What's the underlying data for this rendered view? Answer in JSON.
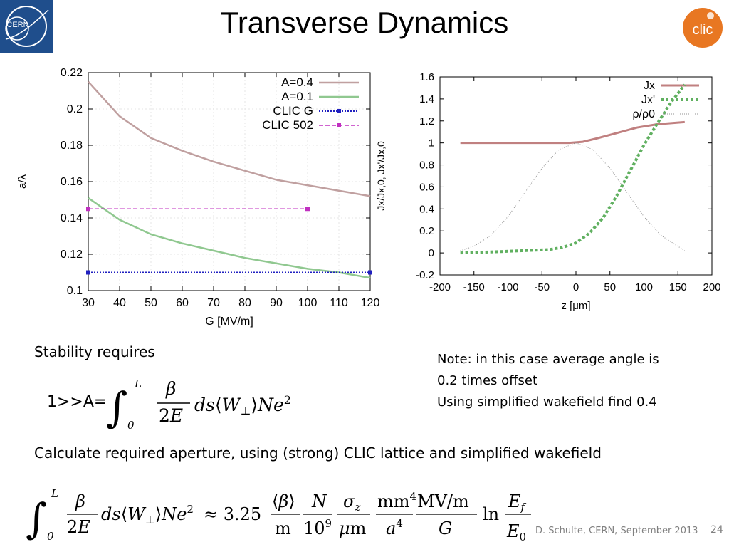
{
  "title": "Transverse Dynamics",
  "logos": {
    "cern": "CERN",
    "clic": "clic"
  },
  "chart_data": [
    {
      "type": "line",
      "xlabel": "G [MV/m]",
      "ylabel": "a/λ",
      "xlim": [
        30,
        120
      ],
      "ylim": [
        0.1,
        0.22
      ],
      "xticks": [
        30,
        40,
        50,
        60,
        70,
        80,
        90,
        100,
        110,
        120
      ],
      "yticks": [
        0.1,
        0.12,
        0.14,
        0.16,
        0.18,
        0.2,
        0.22
      ],
      "grid": true,
      "legend_position": "top-right",
      "series": [
        {
          "name": "A=0.4",
          "color": "#c0a0a0",
          "x": [
            30,
            40,
            50,
            60,
            70,
            80,
            90,
            100,
            110,
            120
          ],
          "y": [
            0.215,
            0.196,
            0.184,
            0.177,
            0.171,
            0.166,
            0.161,
            0.158,
            0.155,
            0.152
          ]
        },
        {
          "name": "A=0.1",
          "color": "#90c890",
          "x": [
            30,
            40,
            50,
            60,
            70,
            80,
            90,
            100,
            110,
            120
          ],
          "y": [
            0.151,
            0.139,
            0.131,
            0.126,
            0.122,
            0.118,
            0.115,
            0.112,
            0.11,
            0.107
          ]
        },
        {
          "name": "CLIC G",
          "color": "#2020c0",
          "x": [
            30,
            120
          ],
          "y": [
            0.11,
            0.11
          ]
        },
        {
          "name": "CLIC 502",
          "color": "#c030c0",
          "x": [
            30,
            100
          ],
          "y": [
            0.145,
            0.145
          ]
        }
      ]
    },
    {
      "type": "line",
      "xlabel": "z [μm]",
      "ylabel": "Jx/Jx,0, Jx'/Jx,0",
      "xlim": [
        -200,
        200
      ],
      "ylim": [
        -0.2,
        1.6
      ],
      "xticks": [
        -200,
        -150,
        -100,
        -50,
        0,
        50,
        100,
        150,
        200
      ],
      "yticks": [
        -0.2,
        0,
        0.2,
        0.4,
        0.6,
        0.8,
        1,
        1.2,
        1.4,
        1.6
      ],
      "grid": false,
      "legend_position": "top-right",
      "series": [
        {
          "name": "Jx",
          "color": "#c08080",
          "x": [
            -170,
            -120,
            -80,
            -40,
            -10,
            10,
            30,
            60,
            90,
            120,
            160
          ],
          "y": [
            1.0,
            1.0,
            1.0,
            1.0,
            1.0,
            1.01,
            1.04,
            1.09,
            1.14,
            1.17,
            1.19
          ]
        },
        {
          "name": "Jx'",
          "color": "#60b060",
          "x": [
            -170,
            -120,
            -80,
            -40,
            -20,
            0,
            20,
            40,
            60,
            80,
            100,
            120,
            140,
            160
          ],
          "y": [
            0.0,
            0.01,
            0.02,
            0.03,
            0.05,
            0.09,
            0.18,
            0.32,
            0.52,
            0.75,
            0.98,
            1.18,
            1.37,
            1.53
          ]
        },
        {
          "name": "ρ/ρ0",
          "color": "#909090",
          "x": [
            -170,
            -150,
            -125,
            -100,
            -75,
            -50,
            -25,
            0,
            25,
            50,
            75,
            100,
            125,
            150,
            160
          ],
          "y": [
            0.02,
            0.06,
            0.16,
            0.33,
            0.55,
            0.77,
            0.94,
            1.0,
            0.94,
            0.77,
            0.55,
            0.33,
            0.16,
            0.06,
            0.02
          ]
        }
      ]
    }
  ],
  "text": {
    "stability": "Stability requires",
    "note_line1": "Note: in this case average angle is",
    "note_line2": "0.2 times offset",
    "note_line3": "Using simplified wakefield find 0.4",
    "calculate": "Calculate required aperture, using (strong) CLIC lattice and simplified wakefield",
    "condition_lhs": "1>>A=",
    "footer": "D. Schulte, CERN, September 2013",
    "page": "24"
  }
}
